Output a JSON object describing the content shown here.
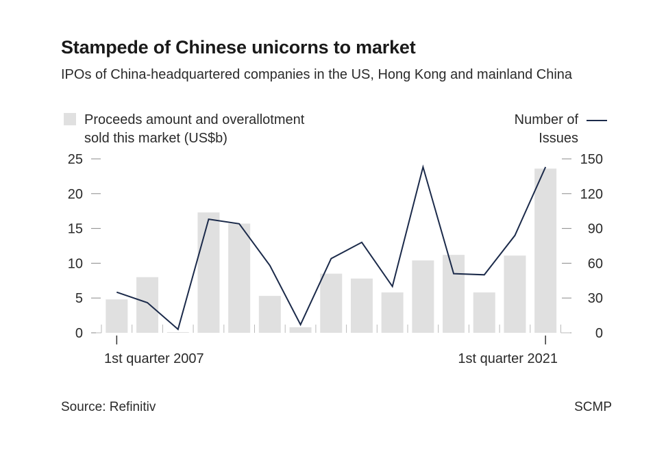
{
  "header": {
    "title": "Stampede of Chinese unicorns to market",
    "subtitle": "IPOs of China-headquartered companies in the US, Hong Kong and mainland China"
  },
  "legend": {
    "bars_line1": "Proceeds amount and overallotment",
    "bars_line2": "sold this market (US$b)",
    "line_line1": "Number of",
    "line_line2": "Issues"
  },
  "footer": {
    "source": "Source: Refinitiv",
    "credit": "SCMP"
  },
  "chart_data": {
    "type": "bar",
    "x_labels": {
      "first": "1st quarter 2007",
      "last": "1st quarter 2021"
    },
    "left_axis": {
      "ticks": [
        "0",
        "5",
        "10",
        "15",
        "20",
        "25"
      ],
      "ylim": [
        0,
        25
      ]
    },
    "right_axis": {
      "ticks": [
        "0",
        "30",
        "60",
        "90",
        "120",
        "150"
      ],
      "ylim": [
        0,
        150
      ]
    },
    "series": [
      {
        "name": "Proceeds amount and overallotment sold this market (US$b)",
        "type": "bar",
        "axis": "left",
        "values": [
          4.8,
          8.0,
          0.1,
          17.3,
          15.7,
          5.3,
          0.8,
          8.5,
          7.8,
          5.8,
          10.4,
          11.2,
          5.8,
          11.1,
          23.6
        ]
      },
      {
        "name": "Number of Issues",
        "type": "line",
        "axis": "right",
        "values": [
          35,
          26,
          3,
          98,
          94,
          58,
          7,
          64,
          78,
          40,
          143,
          51,
          50,
          84,
          143
        ]
      }
    ],
    "colors": {
      "bar": "#e0e0e0",
      "line": "#1b2a4a",
      "axis": "#888888"
    }
  }
}
